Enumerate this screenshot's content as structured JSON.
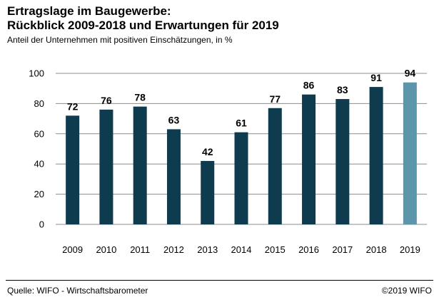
{
  "title_line1": "Ertragslage im Baugewerbe:",
  "title_line2": "Rückblick 2009-2018 und Erwartungen für 2019",
  "subtitle": "Anteil der Unternehmen mit positiven Einschätzungen, in %",
  "source": "Quelle: WIFO - Wirtschaftsbarometer",
  "copyright": "©2019 WIFO",
  "colors": {
    "bar": "#0f3b4f",
    "bar_highlight": "#5b96ab",
    "grid": "#8c8c8c"
  },
  "chart_data": {
    "type": "bar",
    "title": "Ertragslage im Baugewerbe: Rückblick 2009-2018 und Erwartungen für 2019",
    "subtitle": "Anteil der Unternehmen mit positiven Einschätzungen, in %",
    "categories": [
      "2009",
      "2010",
      "2011",
      "2012",
      "2013",
      "2014",
      "2015",
      "2016",
      "2017",
      "2018",
      "2019"
    ],
    "values": [
      72,
      76,
      78,
      63,
      42,
      61,
      77,
      86,
      83,
      91,
      94
    ],
    "highlight": [
      "2019"
    ],
    "ylim": [
      0,
      100
    ],
    "yticks": [
      0,
      20,
      40,
      60,
      80,
      100
    ],
    "grid": true,
    "data_labels": true
  }
}
